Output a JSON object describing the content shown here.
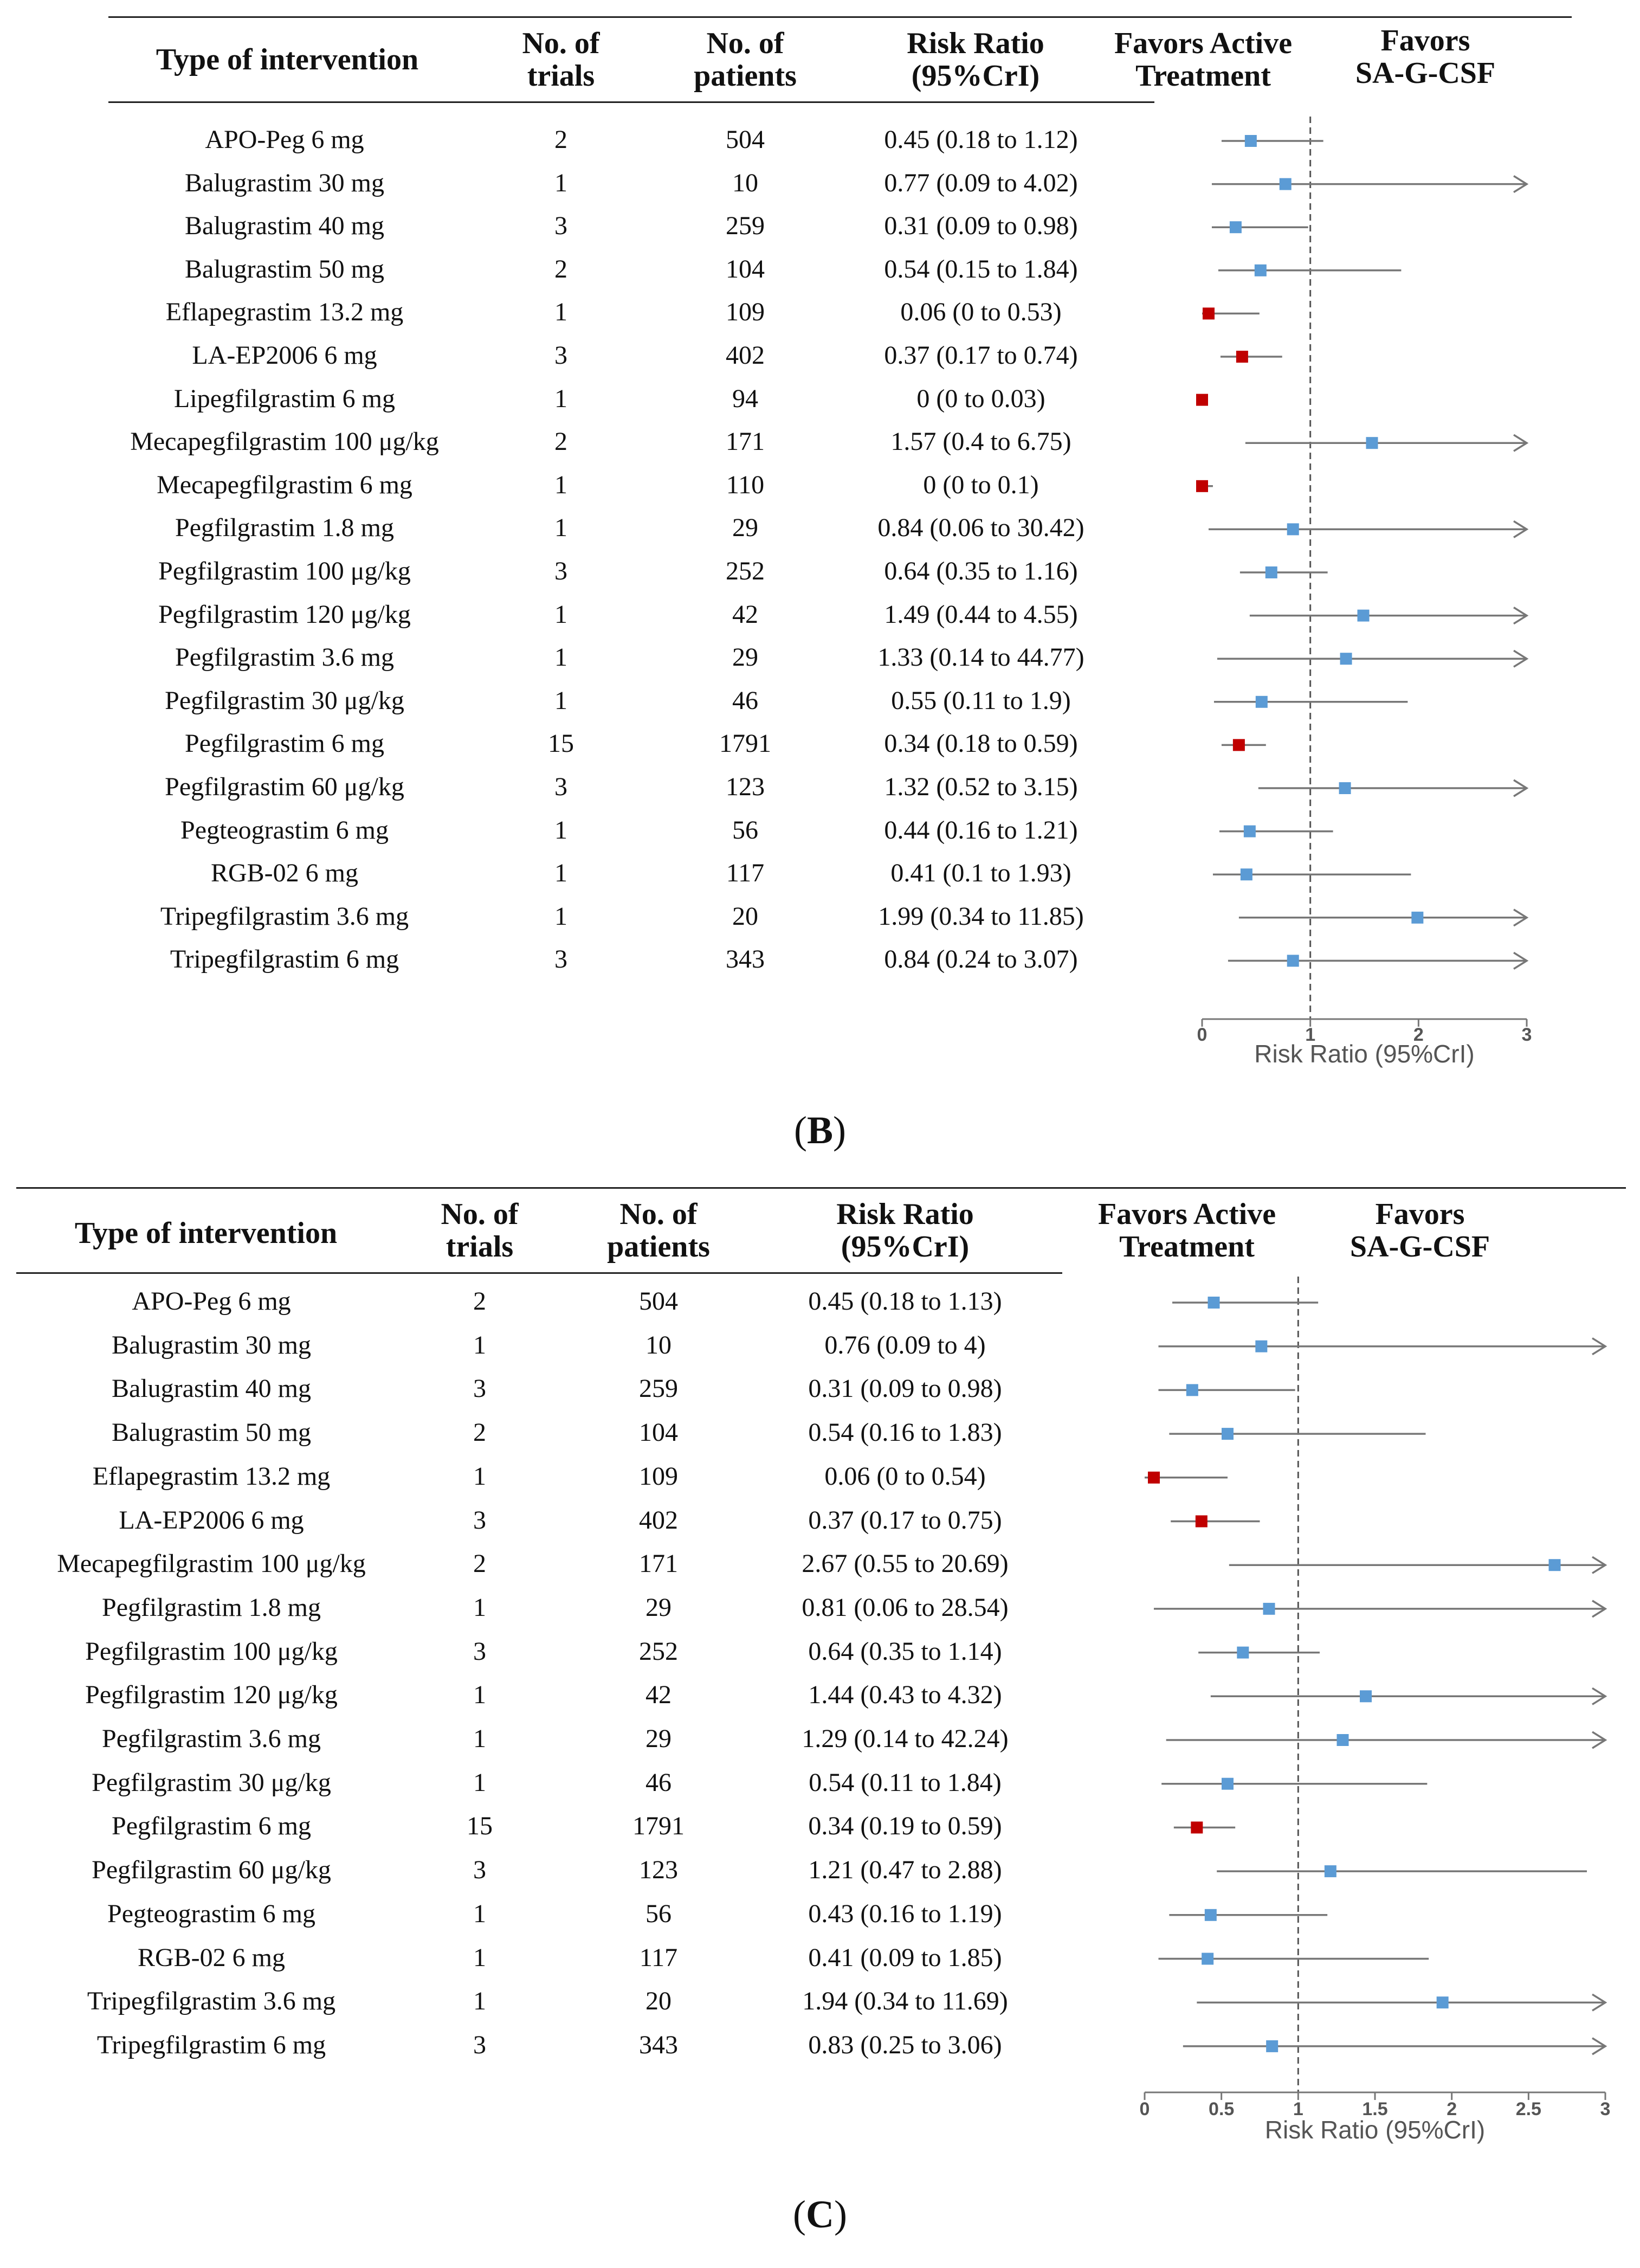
{
  "headers": {
    "type": "Type of intervention",
    "trials_1": "No. of",
    "trials_2": "trials",
    "patients_1": "No. of",
    "patients_2": "patients",
    "rr_1": "Risk Ratio",
    "rr_2": "(95%CrI)",
    "favors_active_1": "Favors Active",
    "favors_active_2": "Treatment",
    "favors_sa_1": "Favors",
    "favors_sa_2": "SA-G-CSF"
  },
  "chart_data": [
    {
      "type": "forest",
      "panel_label": "B",
      "xlabel": "Risk Ratio  (95%CrI)",
      "xlim": [
        0,
        3
      ],
      "xticks": [
        "0",
        "1",
        "2",
        "3"
      ],
      "reference_line": 1,
      "rows": [
        {
          "name": "APO-Peg 6 mg",
          "trials": "2",
          "patients": "504",
          "rr": "0.45 (0.18 to 1.12)",
          "point": 0.45,
          "low": 0.18,
          "high": 1.12,
          "color": "#5b9bd5"
        },
        {
          "name": "Balugrastim 30 mg",
          "trials": "1",
          "patients": "10",
          "rr": "0.77 (0.09 to 4.02)",
          "point": 0.77,
          "low": 0.09,
          "high": 4.02,
          "color": "#5b9bd5"
        },
        {
          "name": "Balugrastim 40 mg",
          "trials": "3",
          "patients": "259",
          "rr": "0.31 (0.09 to 0.98)",
          "point": 0.31,
          "low": 0.09,
          "high": 0.98,
          "color": "#5b9bd5"
        },
        {
          "name": "Balugrastim 50 mg",
          "trials": "2",
          "patients": "104",
          "rr": "0.54 (0.15 to 1.84)",
          "point": 0.54,
          "low": 0.15,
          "high": 1.84,
          "color": "#5b9bd5"
        },
        {
          "name": "Eflapegrastim 13.2 mg",
          "trials": "1",
          "patients": "109",
          "rr": "0.06 (0 to 0.53)",
          "point": 0.06,
          "low": 0,
          "high": 0.53,
          "color": "#c00000"
        },
        {
          "name": "LA-EP2006 6 mg",
          "trials": "3",
          "patients": "402",
          "rr": "0.37 (0.17 to 0.74)",
          "point": 0.37,
          "low": 0.17,
          "high": 0.74,
          "color": "#c00000"
        },
        {
          "name": "Lipegfilgrastim 6 mg",
          "trials": "1",
          "patients": "94",
          "rr": "0 (0 to 0.03)",
          "point": 0,
          "low": 0,
          "high": 0.03,
          "color": "#c00000"
        },
        {
          "name": "Mecapegfilgrastim 100 μg/kg",
          "trials": "2",
          "patients": "171",
          "rr": "1.57 (0.4 to 6.75)",
          "point": 1.57,
          "low": 0.4,
          "high": 6.75,
          "color": "#5b9bd5"
        },
        {
          "name": "Mecapegfilgrastim 6 mg",
          "trials": "1",
          "patients": "110",
          "rr": "0 (0 to 0.1)",
          "point": 0,
          "low": 0,
          "high": 0.1,
          "color": "#c00000"
        },
        {
          "name": "Pegfilgrastim 1.8 mg",
          "trials": "1",
          "patients": "29",
          "rr": "0.84 (0.06 to 30.42)",
          "point": 0.84,
          "low": 0.06,
          "high": 30.42,
          "color": "#5b9bd5"
        },
        {
          "name": "Pegfilgrastim 100 μg/kg",
          "trials": "3",
          "patients": "252",
          "rr": "0.64 (0.35 to 1.16)",
          "point": 0.64,
          "low": 0.35,
          "high": 1.16,
          "color": "#5b9bd5"
        },
        {
          "name": "Pegfilgrastim 120 μg/kg",
          "trials": "1",
          "patients": "42",
          "rr": "1.49 (0.44 to 4.55)",
          "point": 1.49,
          "low": 0.44,
          "high": 4.55,
          "color": "#5b9bd5"
        },
        {
          "name": "Pegfilgrastim 3.6 mg",
          "trials": "1",
          "patients": "29",
          "rr": "1.33 (0.14 to 44.77)",
          "point": 1.33,
          "low": 0.14,
          "high": 44.77,
          "color": "#5b9bd5"
        },
        {
          "name": "Pegfilgrastim 30 μg/kg",
          "trials": "1",
          "patients": "46",
          "rr": "0.55 (0.11 to 1.9)",
          "point": 0.55,
          "low": 0.11,
          "high": 1.9,
          "color": "#5b9bd5"
        },
        {
          "name": "Pegfilgrastim 6 mg",
          "trials": "15",
          "patients": "1791",
          "rr": "0.34 (0.18 to 0.59)",
          "point": 0.34,
          "low": 0.18,
          "high": 0.59,
          "color": "#c00000"
        },
        {
          "name": "Pegfilgrastim 60 μg/kg",
          "trials": "3",
          "patients": "123",
          "rr": "1.32 (0.52 to 3.15)",
          "point": 1.32,
          "low": 0.52,
          "high": 3.15,
          "color": "#5b9bd5"
        },
        {
          "name": "Pegteograstim 6 mg",
          "trials": "1",
          "patients": "56",
          "rr": "0.44 (0.16 to 1.21)",
          "point": 0.44,
          "low": 0.16,
          "high": 1.21,
          "color": "#5b9bd5"
        },
        {
          "name": "RGB-02 6 mg",
          "trials": "1",
          "patients": "117",
          "rr": "0.41 (0.1 to 1.93)",
          "point": 0.41,
          "low": 0.1,
          "high": 1.93,
          "color": "#5b9bd5"
        },
        {
          "name": "Tripegfilgrastim 3.6 mg",
          "trials": "1",
          "patients": "20",
          "rr": "1.99 (0.34 to 11.85)",
          "point": 1.99,
          "low": 0.34,
          "high": 11.85,
          "color": "#5b9bd5"
        },
        {
          "name": "Tripegfilgrastim 6 mg",
          "trials": "3",
          "patients": "343",
          "rr": "0.84 (0.24 to 3.07)",
          "point": 0.84,
          "low": 0.24,
          "high": 3.07,
          "color": "#5b9bd5"
        }
      ]
    },
    {
      "type": "forest",
      "panel_label": "C",
      "xlabel": "Risk Ratio  (95%CrI)",
      "xlim": [
        0,
        3
      ],
      "xticks": [
        "0",
        "0.5",
        "1",
        "1.5",
        "2",
        "2.5",
        "3"
      ],
      "reference_line": 1,
      "rows": [
        {
          "name": "APO-Peg 6 mg",
          "trials": "2",
          "patients": "504",
          "rr": "0.45 (0.18 to 1.13)",
          "point": 0.45,
          "low": 0.18,
          "high": 1.13,
          "color": "#5b9bd5"
        },
        {
          "name": "Balugrastim 30 mg",
          "trials": "1",
          "patients": "10",
          "rr": "0.76 (0.09 to 4)",
          "point": 0.76,
          "low": 0.09,
          "high": 4,
          "color": "#5b9bd5"
        },
        {
          "name": "Balugrastim 40 mg",
          "trials": "3",
          "patients": "259",
          "rr": "0.31 (0.09 to 0.98)",
          "point": 0.31,
          "low": 0.09,
          "high": 0.98,
          "color": "#5b9bd5"
        },
        {
          "name": "Balugrastim 50 mg",
          "trials": "2",
          "patients": "104",
          "rr": "0.54 (0.16 to 1.83)",
          "point": 0.54,
          "low": 0.16,
          "high": 1.83,
          "color": "#5b9bd5"
        },
        {
          "name": "Eflapegrastim 13.2 mg",
          "trials": "1",
          "patients": "109",
          "rr": "0.06 (0 to 0.54)",
          "point": 0.06,
          "low": 0,
          "high": 0.54,
          "color": "#c00000"
        },
        {
          "name": "LA-EP2006 6 mg",
          "trials": "3",
          "patients": "402",
          "rr": "0.37 (0.17 to 0.75)",
          "point": 0.37,
          "low": 0.17,
          "high": 0.75,
          "color": "#c00000"
        },
        {
          "name": "Mecapegfilgrastim 100 μg/kg",
          "trials": "2",
          "patients": "171",
          "rr": "2.67 (0.55 to 20.69)",
          "point": 2.67,
          "low": 0.55,
          "high": 20.69,
          "color": "#5b9bd5"
        },
        {
          "name": "Pegfilgrastim 1.8 mg",
          "trials": "1",
          "patients": "29",
          "rr": "0.81 (0.06 to 28.54)",
          "point": 0.81,
          "low": 0.06,
          "high": 28.54,
          "color": "#5b9bd5"
        },
        {
          "name": "Pegfilgrastim 100 μg/kg",
          "trials": "3",
          "patients": "252",
          "rr": "0.64 (0.35 to 1.14)",
          "point": 0.64,
          "low": 0.35,
          "high": 1.14,
          "color": "#5b9bd5"
        },
        {
          "name": "Pegfilgrastim 120 μg/kg",
          "trials": "1",
          "patients": "42",
          "rr": "1.44 (0.43 to 4.32)",
          "point": 1.44,
          "low": 0.43,
          "high": 4.32,
          "color": "#5b9bd5"
        },
        {
          "name": "Pegfilgrastim 3.6 mg",
          "trials": "1",
          "patients": "29",
          "rr": "1.29 (0.14 to 42.24)",
          "point": 1.29,
          "low": 0.14,
          "high": 42.24,
          "color": "#5b9bd5"
        },
        {
          "name": "Pegfilgrastim 30 μg/kg",
          "trials": "1",
          "patients": "46",
          "rr": "0.54 (0.11 to 1.84)",
          "point": 0.54,
          "low": 0.11,
          "high": 1.84,
          "color": "#5b9bd5"
        },
        {
          "name": "Pegfilgrastim 6 mg",
          "trials": "15",
          "patients": "1791",
          "rr": "0.34 (0.19 to 0.59)",
          "point": 0.34,
          "low": 0.19,
          "high": 0.59,
          "color": "#c00000"
        },
        {
          "name": "Pegfilgrastim 60 μg/kg",
          "trials": "3",
          "patients": "123",
          "rr": "1.21 (0.47 to 2.88)",
          "point": 1.21,
          "low": 0.47,
          "high": 2.88,
          "color": "#5b9bd5"
        },
        {
          "name": "Pegteograstim 6 mg",
          "trials": "1",
          "patients": "56",
          "rr": "0.43 (0.16 to 1.19)",
          "point": 0.43,
          "low": 0.16,
          "high": 1.19,
          "color": "#5b9bd5"
        },
        {
          "name": "RGB-02 6 mg",
          "trials": "1",
          "patients": "117",
          "rr": "0.41 (0.09 to 1.85)",
          "point": 0.41,
          "low": 0.09,
          "high": 1.85,
          "color": "#5b9bd5"
        },
        {
          "name": "Tripegfilgrastim 3.6 mg",
          "trials": "1",
          "patients": "20",
          "rr": "1.94 (0.34 to 11.69)",
          "point": 1.94,
          "low": 0.34,
          "high": 11.69,
          "color": "#5b9bd5"
        },
        {
          "name": "Tripegfilgrastim 6 mg",
          "trials": "3",
          "patients": "343",
          "rr": "0.83 (0.25 to 3.06)",
          "point": 0.83,
          "low": 0.25,
          "high": 3.06,
          "color": "#5b9bd5"
        }
      ]
    }
  ]
}
